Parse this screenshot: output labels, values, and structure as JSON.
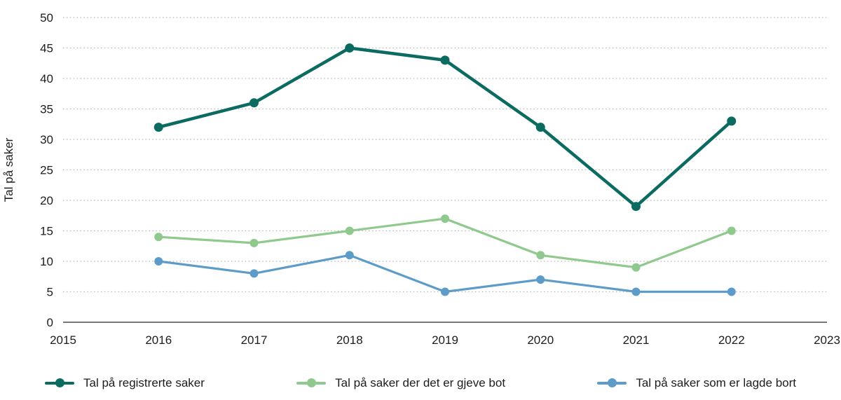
{
  "chart_data": {
    "type": "line",
    "title": "",
    "xlabel": "",
    "ylabel": "Tal på saker",
    "x": [
      2016,
      2017,
      2018,
      2019,
      2020,
      2021,
      2022
    ],
    "xticks": [
      "2015",
      "2016",
      "2017",
      "2018",
      "2019",
      "2020",
      "2021",
      "2022",
      "2023"
    ],
    "yticks": [
      "0",
      "5",
      "10",
      "15",
      "20",
      "25",
      "30",
      "35",
      "40",
      "45",
      "50"
    ],
    "xlim": [
      2015,
      2023
    ],
    "ylim": [
      0,
      50
    ],
    "grid": "horizontal-dotted",
    "legend_position": "bottom",
    "series": [
      {
        "name": "Tal på registrerte saker",
        "color": "#0c6b60",
        "values": [
          32,
          36,
          45,
          43,
          32,
          19,
          33
        ]
      },
      {
        "name": "Tal på saker der det er gjeve bot",
        "color": "#8fc98e",
        "values": [
          14,
          13,
          15,
          17,
          11,
          9,
          15
        ]
      },
      {
        "name": "Tal på saker som er lagde bort",
        "color": "#5d9cc9",
        "values": [
          10,
          8,
          11,
          5,
          7,
          5,
          5
        ]
      }
    ],
    "colors": {
      "axis_line": "#4a4a4a",
      "grid_line": "#b5b5b5",
      "text": "#1d1d1b"
    }
  }
}
